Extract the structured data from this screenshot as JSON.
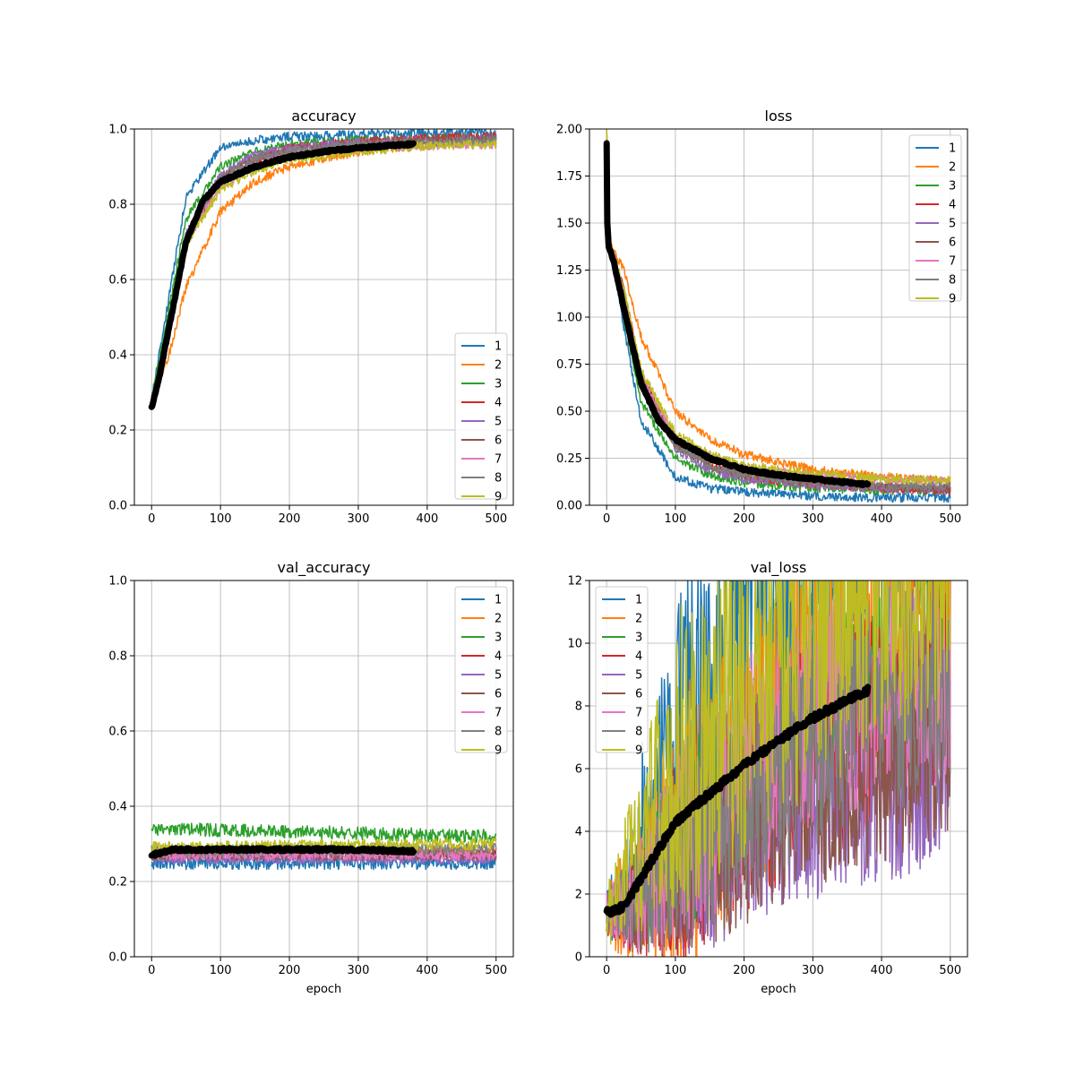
{
  "colors": [
    "#1f77b4",
    "#ff7f0e",
    "#2ca02c",
    "#d62728",
    "#9467bd",
    "#8c564b",
    "#e377c2",
    "#7f7f7f",
    "#bcbd22"
  ],
  "mean_color": "#000000",
  "chart_data": [
    {
      "id": "accuracy",
      "type": "line",
      "title": "accuracy",
      "xlabel": "",
      "ylabel": "",
      "xlim": [
        -25,
        525
      ],
      "ylim": [
        0,
        1.0
      ],
      "xticks": [
        0,
        100,
        200,
        300,
        400,
        500
      ],
      "yticks": [
        0.0,
        0.2,
        0.4,
        0.6,
        0.8,
        1.0
      ],
      "ytick_labels": [
        "0.0",
        "0.2",
        "0.4",
        "0.6",
        "0.8",
        "1.0"
      ],
      "grid": true,
      "legend_loc": "lower-right",
      "legend_entries": [
        "1",
        "2",
        "3",
        "4",
        "5",
        "6",
        "7",
        "8",
        "9"
      ],
      "series_anchors": [
        {
          "x": [
            0,
            25,
            50,
            100,
            150,
            200,
            300,
            400,
            500
          ],
          "y": [
            0.28,
            0.55,
            0.82,
            0.95,
            0.97,
            0.98,
            0.985,
            0.99,
            0.99
          ]
        },
        {
          "x": [
            0,
            25,
            50,
            100,
            150,
            200,
            300,
            400,
            500
          ],
          "y": [
            0.27,
            0.4,
            0.58,
            0.78,
            0.86,
            0.9,
            0.94,
            0.96,
            0.97
          ]
        },
        {
          "x": [
            0,
            25,
            50,
            100,
            150,
            200,
            300,
            400,
            500
          ],
          "y": [
            0.28,
            0.52,
            0.76,
            0.9,
            0.94,
            0.96,
            0.97,
            0.975,
            0.975
          ]
        },
        {
          "x": [
            0,
            25,
            50,
            100,
            150,
            200,
            300,
            400,
            500
          ],
          "y": [
            0.27,
            0.45,
            0.7,
            0.87,
            0.92,
            0.95,
            0.965,
            0.975,
            0.98
          ]
        },
        {
          "x": [
            0,
            25,
            50,
            100,
            150,
            200,
            300,
            400,
            500
          ],
          "y": [
            0.27,
            0.47,
            0.72,
            0.88,
            0.93,
            0.95,
            0.965,
            0.97,
            0.975
          ]
        },
        {
          "x": [
            0,
            25,
            50,
            100,
            150,
            200,
            300,
            400,
            500
          ],
          "y": [
            0.27,
            0.46,
            0.71,
            0.87,
            0.92,
            0.94,
            0.96,
            0.97,
            0.975
          ]
        },
        {
          "x": [
            0,
            25,
            50,
            100,
            150,
            200,
            300,
            400,
            500
          ],
          "y": [
            0.27,
            0.46,
            0.7,
            0.85,
            0.9,
            0.93,
            0.95,
            0.955,
            0.96
          ]
        },
        {
          "x": [
            0,
            25,
            50,
            100,
            150,
            200,
            300,
            400,
            500
          ],
          "y": [
            0.27,
            0.48,
            0.72,
            0.87,
            0.92,
            0.94,
            0.96,
            0.965,
            0.97
          ]
        },
        {
          "x": [
            0,
            25,
            50,
            100,
            150,
            200,
            300,
            400,
            500
          ],
          "y": [
            0.27,
            0.46,
            0.69,
            0.84,
            0.89,
            0.92,
            0.94,
            0.955,
            0.96
          ]
        }
      ],
      "series_noise": [
        0.012,
        0.012,
        0.012,
        0.012,
        0.012,
        0.012,
        0.012,
        0.012,
        0.012
      ],
      "mean_anchors": {
        "x": [
          0,
          10,
          25,
          50,
          75,
          100,
          150,
          200,
          250,
          300,
          380
        ],
        "y": [
          0.26,
          0.33,
          0.47,
          0.7,
          0.81,
          0.86,
          0.9,
          0.925,
          0.94,
          0.95,
          0.96
        ]
      }
    },
    {
      "id": "loss",
      "type": "line",
      "title": "loss",
      "xlabel": "",
      "ylabel": "",
      "xlim": [
        -25,
        525
      ],
      "ylim": [
        0,
        2.0
      ],
      "xticks": [
        0,
        100,
        200,
        300,
        400,
        500
      ],
      "yticks": [
        0.0,
        0.25,
        0.5,
        0.75,
        1.0,
        1.25,
        1.5,
        1.75,
        2.0
      ],
      "ytick_labels": [
        "0.00",
        "0.25",
        "0.50",
        "0.75",
        "1.00",
        "1.25",
        "1.50",
        "1.75",
        "2.00"
      ],
      "grid": true,
      "legend_loc": "upper-right",
      "legend_entries": [
        "1",
        "2",
        "3",
        "4",
        "5",
        "6",
        "7",
        "8",
        "9"
      ],
      "series_anchors": [
        {
          "x": [
            0,
            2,
            10,
            25,
            50,
            100,
            150,
            200,
            300,
            400,
            500
          ],
          "y": [
            2.0,
            1.38,
            1.3,
            0.95,
            0.45,
            0.15,
            0.09,
            0.07,
            0.05,
            0.04,
            0.04
          ]
        },
        {
          "x": [
            0,
            2,
            10,
            25,
            50,
            100,
            150,
            200,
            300,
            400,
            500
          ],
          "y": [
            2.0,
            1.38,
            1.36,
            1.25,
            0.9,
            0.5,
            0.35,
            0.27,
            0.19,
            0.15,
            0.13
          ]
        },
        {
          "x": [
            0,
            2,
            10,
            25,
            50,
            100,
            150,
            200,
            300,
            400,
            500
          ],
          "y": [
            2.0,
            1.38,
            1.3,
            1.0,
            0.55,
            0.25,
            0.16,
            0.12,
            0.09,
            0.08,
            0.08
          ]
        },
        {
          "x": [
            0,
            2,
            10,
            25,
            50,
            100,
            150,
            200,
            300,
            400,
            500
          ],
          "y": [
            2.0,
            1.38,
            1.33,
            1.15,
            0.7,
            0.32,
            0.21,
            0.15,
            0.11,
            0.09,
            0.08
          ]
        },
        {
          "x": [
            0,
            2,
            10,
            25,
            50,
            100,
            150,
            200,
            300,
            400,
            500
          ],
          "y": [
            2.0,
            1.38,
            1.32,
            1.1,
            0.65,
            0.3,
            0.19,
            0.14,
            0.11,
            0.09,
            0.09
          ]
        },
        {
          "x": [
            0,
            2,
            10,
            25,
            50,
            100,
            150,
            200,
            300,
            400,
            500
          ],
          "y": [
            2.0,
            1.38,
            1.33,
            1.15,
            0.68,
            0.32,
            0.21,
            0.16,
            0.12,
            0.1,
            0.09
          ]
        },
        {
          "x": [
            0,
            2,
            10,
            25,
            50,
            100,
            150,
            200,
            300,
            400,
            500
          ],
          "y": [
            2.0,
            1.38,
            1.33,
            1.12,
            0.68,
            0.36,
            0.26,
            0.2,
            0.16,
            0.14,
            0.13
          ]
        },
        {
          "x": [
            0,
            2,
            10,
            25,
            50,
            100,
            150,
            200,
            300,
            400,
            500
          ],
          "y": [
            2.0,
            1.38,
            1.32,
            1.1,
            0.65,
            0.31,
            0.21,
            0.16,
            0.12,
            0.1,
            0.1
          ]
        },
        {
          "x": [
            0,
            2,
            10,
            25,
            50,
            100,
            150,
            200,
            300,
            400,
            500
          ],
          "y": [
            2.0,
            1.38,
            1.33,
            1.15,
            0.72,
            0.38,
            0.27,
            0.21,
            0.17,
            0.14,
            0.13
          ]
        }
      ],
      "series_noise": [
        0.012,
        0.012,
        0.012,
        0.012,
        0.012,
        0.012,
        0.012,
        0.012,
        0.012
      ],
      "mean_anchors": {
        "x": [
          0,
          1,
          3,
          10,
          25,
          50,
          75,
          100,
          150,
          200,
          250,
          300,
          380
        ],
        "y": [
          1.93,
          1.5,
          1.37,
          1.3,
          1.05,
          0.65,
          0.45,
          0.35,
          0.25,
          0.19,
          0.16,
          0.14,
          0.11
        ]
      }
    },
    {
      "id": "val_accuracy",
      "type": "line",
      "title": "val_accuracy",
      "xlabel": "epoch",
      "ylabel": "",
      "xlim": [
        -25,
        525
      ],
      "ylim": [
        0,
        1.0
      ],
      "xticks": [
        0,
        100,
        200,
        300,
        400,
        500
      ],
      "yticks": [
        0.0,
        0.2,
        0.4,
        0.6,
        0.8,
        1.0
      ],
      "ytick_labels": [
        "0.0",
        "0.2",
        "0.4",
        "0.6",
        "0.8",
        "1.0"
      ],
      "grid": true,
      "legend_loc": "upper-right",
      "legend_entries": [
        "1",
        "2",
        "3",
        "4",
        "5",
        "6",
        "7",
        "8",
        "9"
      ],
      "series_anchors": [
        {
          "x": [
            0,
            500
          ],
          "y": [
            0.25,
            0.25
          ]
        },
        {
          "x": [
            0,
            500
          ],
          "y": [
            0.28,
            0.28
          ]
        },
        {
          "x": [
            0,
            500
          ],
          "y": [
            0.34,
            0.32
          ]
        },
        {
          "x": [
            0,
            500
          ],
          "y": [
            0.27,
            0.27
          ]
        },
        {
          "x": [
            0,
            500
          ],
          "y": [
            0.26,
            0.26
          ]
        },
        {
          "x": [
            0,
            500
          ],
          "y": [
            0.27,
            0.27
          ]
        },
        {
          "x": [
            0,
            500
          ],
          "y": [
            0.27,
            0.27
          ]
        },
        {
          "x": [
            0,
            500
          ],
          "y": [
            0.28,
            0.29
          ]
        },
        {
          "x": [
            0,
            500
          ],
          "y": [
            0.29,
            0.3
          ]
        }
      ],
      "series_noise": [
        0.018,
        0.016,
        0.018,
        0.014,
        0.014,
        0.014,
        0.014,
        0.016,
        0.016
      ],
      "mean_anchors": {
        "x": [
          0,
          30,
          100,
          200,
          300,
          380
        ],
        "y": [
          0.27,
          0.285,
          0.285,
          0.285,
          0.285,
          0.28
        ]
      }
    },
    {
      "id": "val_loss",
      "type": "line",
      "title": "val_loss",
      "xlabel": "epoch",
      "ylabel": "",
      "xlim": [
        -25,
        525
      ],
      "ylim": [
        0,
        12
      ],
      "xticks": [
        0,
        100,
        200,
        300,
        400,
        500
      ],
      "yticks": [
        0,
        2,
        4,
        6,
        8,
        10,
        12
      ],
      "ytick_labels": [
        "0",
        "2",
        "4",
        "6",
        "8",
        "10",
        "12"
      ],
      "grid": true,
      "legend_loc": "upper-left",
      "legend_entries": [
        "1",
        "2",
        "3",
        "4",
        "5",
        "6",
        "7",
        "8",
        "9"
      ],
      "series_anchors": [
        {
          "x": [
            0,
            25,
            50,
            100,
            150,
            200,
            250,
            300,
            380
          ],
          "y": [
            1.4,
            2.0,
            4.5,
            7.5,
            9.0,
            10.5,
            11.5,
            12.5,
            13.0
          ]
        },
        {
          "x": [
            0,
            50,
            100,
            200,
            300,
            400,
            500
          ],
          "y": [
            1.4,
            2.0,
            3.5,
            6.0,
            8.5,
            10.5,
            12.0
          ]
        },
        {
          "x": [
            0,
            50,
            100,
            200,
            300,
            400,
            500
          ],
          "y": [
            1.4,
            2.0,
            3.5,
            5.8,
            7.5,
            8.5,
            9.0
          ]
        },
        {
          "x": [
            0,
            50,
            100,
            200,
            300,
            400,
            500
          ],
          "y": [
            1.4,
            1.8,
            3.0,
            5.0,
            6.5,
            7.5,
            8.5
          ]
        },
        {
          "x": [
            0,
            50,
            100,
            200,
            300,
            400,
            500
          ],
          "y": [
            1.4,
            1.7,
            2.6,
            3.8,
            4.8,
            5.3,
            5.8
          ]
        },
        {
          "x": [
            0,
            50,
            100,
            200,
            300,
            400,
            500
          ],
          "y": [
            1.4,
            1.7,
            2.7,
            4.0,
            5.0,
            6.0,
            7.0
          ]
        },
        {
          "x": [
            0,
            50,
            100,
            200,
            300,
            400,
            500
          ],
          "y": [
            1.4,
            1.9,
            3.5,
            6.0,
            7.8,
            8.5,
            9.0
          ]
        },
        {
          "x": [
            0,
            50,
            100,
            200,
            300,
            400,
            500
          ],
          "y": [
            1.4,
            1.9,
            3.5,
            5.5,
            7.0,
            8.0,
            8.5
          ]
        },
        {
          "x": [
            0,
            25,
            50,
            100,
            200,
            300,
            400,
            500
          ],
          "y": [
            1.5,
            2.3,
            3.5,
            6.0,
            8.5,
            10.5,
            12.0,
            12.5
          ]
        }
      ],
      "series_noise": [
        0.35,
        0.4,
        0.25,
        0.3,
        0.25,
        0.25,
        0.3,
        0.3,
        0.45
      ],
      "mean_anchors": {
        "x": [
          0,
          25,
          50,
          100,
          150,
          200,
          250,
          300,
          350,
          380
        ],
        "y": [
          1.4,
          1.6,
          2.5,
          4.3,
          5.2,
          6.1,
          6.9,
          7.6,
          8.2,
          8.5
        ]
      }
    }
  ]
}
